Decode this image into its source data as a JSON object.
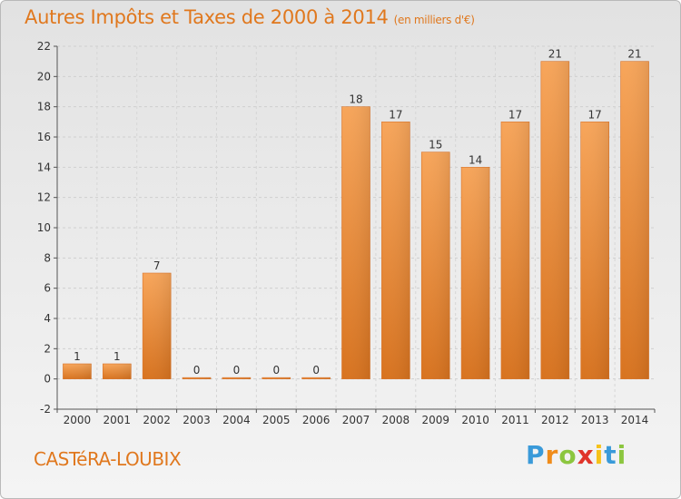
{
  "title": "Autres Impôts et Taxes de 2000 à 2014",
  "unit": "(en milliers d'€)",
  "commune": "CASTéRA-LOUBIX",
  "logo": {
    "letters": [
      "P",
      "r",
      "o",
      "x",
      "i",
      "t",
      "i"
    ],
    "colors": [
      "#3a9ad9",
      "#f08c1a",
      "#8cc63f",
      "#e0342a",
      "#f6c21a",
      "#3a9ad9",
      "#8cc63f"
    ]
  },
  "chart_data": {
    "type": "bar",
    "categories": [
      "2000",
      "2001",
      "2002",
      "2003",
      "2004",
      "2005",
      "2006",
      "2007",
      "2008",
      "2009",
      "2010",
      "2011",
      "2012",
      "2013",
      "2014"
    ],
    "values": [
      1,
      1,
      7,
      0,
      0,
      0,
      0,
      18,
      17,
      15,
      14,
      17,
      21,
      17,
      21
    ],
    "ylim": [
      -2,
      22
    ],
    "yticks": [
      -2,
      0,
      2,
      4,
      6,
      8,
      10,
      12,
      14,
      16,
      18,
      20,
      22
    ],
    "grid": true,
    "bar_color": "#f0903a"
  }
}
